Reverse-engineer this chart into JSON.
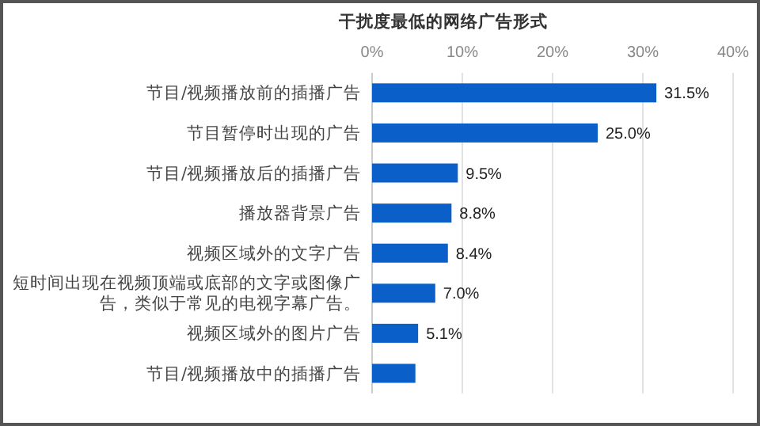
{
  "chart_data": {
    "type": "bar",
    "orientation": "horizontal",
    "title": "干扰度最低的网络广告形式",
    "categories": [
      "节目/视频播放前的插播广告",
      "节目暂停时出现的广告",
      "节目/视频播放后的插播广告",
      "播放器背景广告",
      "视频区域外的文字广告",
      "短时间出现在视频顶端或底部的文字或图像广告，类似于常见的电视字幕广告。",
      "视频区域外的图片广告",
      "节目/视频播放中的插播广告"
    ],
    "values": [
      31.5,
      25.0,
      9.5,
      8.8,
      8.4,
      7.0,
      5.1,
      4.8
    ],
    "value_labels": [
      "31.5%",
      "25.0%",
      "9.5%",
      "8.8%",
      "8.4%",
      "7.0%",
      "5.1%",
      null
    ],
    "color": "#0b5fc9",
    "xlim": [
      0,
      40
    ],
    "xticks": [
      {
        "value": 0,
        "label": "0%"
      },
      {
        "value": 10,
        "label": "10%"
      },
      {
        "value": 20,
        "label": "20%"
      },
      {
        "value": 30,
        "label": "30%"
      },
      {
        "value": 40,
        "label": "40%"
      }
    ],
    "grid": "x"
  }
}
